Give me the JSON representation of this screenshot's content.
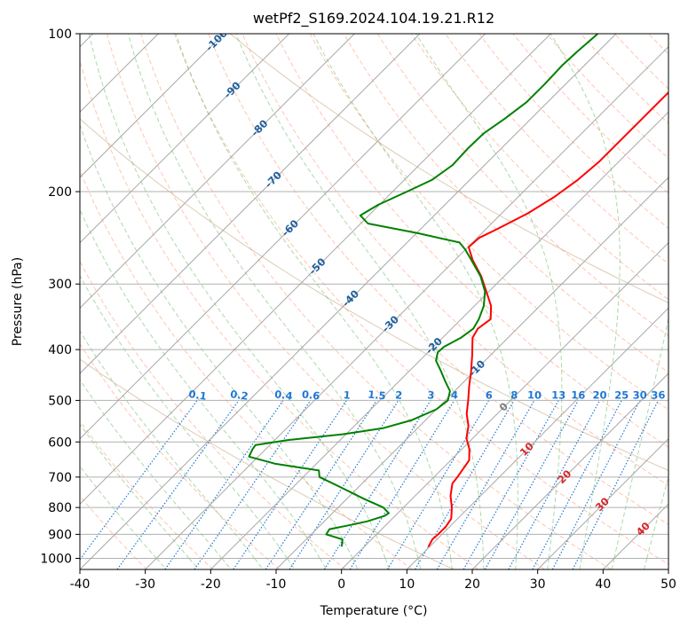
{
  "chart_data": {
    "type": "line",
    "title": "wetPf2_S169.2024.104.19.21.R12",
    "xlabel": "Temperature (°C)",
    "ylabel": "Pressure (hPa)",
    "xlim": [
      -40,
      50
    ],
    "ylim": [
      1050,
      100
    ],
    "y_scale": "log",
    "skew": "skew-T log-p",
    "x_ticks": [
      "-40",
      "-30",
      "-20",
      "-10",
      "0",
      "10",
      "20",
      "30",
      "40",
      "50"
    ],
    "y_ticks": [
      "100",
      "200",
      "300",
      "400",
      "500",
      "600",
      "700",
      "800",
      "900",
      "1000"
    ],
    "grid": true,
    "colors": {
      "temperature": "#ff0000",
      "dewpoint": "#008000",
      "dry_adiabats": "#ff7f50",
      "moist_adiabats": "#2ca02c",
      "mixing_ratio": "#1f77d4",
      "isotherms": "#808080",
      "wet_bulb_zero_label": "#808080",
      "isotherm_labels_cold": "#1f5f9f",
      "isotherm_labels_warm": "#d62728",
      "theta_curves": "#c8a882"
    },
    "isotherm_labels": [
      {
        "text": "-100",
        "t": -100
      },
      {
        "text": "-90",
        "t": -90
      },
      {
        "text": "-80",
        "t": -80
      },
      {
        "text": "-70",
        "t": -70
      },
      {
        "text": "-60",
        "t": -60
      },
      {
        "text": "-50",
        "t": -50
      },
      {
        "text": "-40",
        "t": -40
      },
      {
        "text": "-30",
        "t": -30
      },
      {
        "text": "-20",
        "t": -20
      },
      {
        "text": "-10",
        "t": -10
      },
      {
        "text": "0",
        "t": 0
      },
      {
        "text": "10",
        "t": 10
      },
      {
        "text": "20",
        "t": 20
      },
      {
        "text": "30",
        "t": 30
      },
      {
        "text": "40",
        "t": 40
      }
    ],
    "mixing_ratio_labels": [
      "0.1",
      "0.2",
      "0.4",
      "0.6",
      "1",
      "1.5",
      "2",
      "3",
      "4",
      "6",
      "8",
      "10",
      "13",
      "16",
      "20",
      "25",
      "30",
      "36"
    ],
    "series": [
      {
        "key": "temperature",
        "points": [
          {
            "p": 950,
            "t": 9.8
          },
          {
            "p": 920,
            "t": 9.3
          },
          {
            "p": 900,
            "t": 9.4
          },
          {
            "p": 870,
            "t": 9.4
          },
          {
            "p": 840,
            "t": 9.0
          },
          {
            "p": 800,
            "t": 7.4
          },
          {
            "p": 760,
            "t": 5.4
          },
          {
            "p": 720,
            "t": 3.8
          },
          {
            "p": 700,
            "t": 3.6
          },
          {
            "p": 650,
            "t": 2.8
          },
          {
            "p": 620,
            "t": 1.2
          },
          {
            "p": 590,
            "t": -1.0
          },
          {
            "p": 560,
            "t": -2.5
          },
          {
            "p": 530,
            "t": -4.7
          },
          {
            "p": 500,
            "t": -6.5
          },
          {
            "p": 470,
            "t": -8.5
          },
          {
            "p": 440,
            "t": -10.5
          },
          {
            "p": 410,
            "t": -12.8
          },
          {
            "p": 380,
            "t": -15.4
          },
          {
            "p": 365,
            "t": -16.0
          },
          {
            "p": 350,
            "t": -15.5
          },
          {
            "p": 330,
            "t": -17.5
          },
          {
            "p": 310,
            "t": -20.4
          },
          {
            "p": 290,
            "t": -23.5
          },
          {
            "p": 270,
            "t": -27.3
          },
          {
            "p": 255,
            "t": -29.9
          },
          {
            "p": 245,
            "t": -29.7
          },
          {
            "p": 235,
            "t": -28.2
          },
          {
            "p": 220,
            "t": -26.0
          },
          {
            "p": 205,
            "t": -24.5
          },
          {
            "p": 190,
            "t": -23.5
          },
          {
            "p": 175,
            "t": -23.0
          },
          {
            "p": 160,
            "t": -23.0
          },
          {
            "p": 145,
            "t": -23.0
          },
          {
            "p": 130,
            "t": -23.0
          },
          {
            "p": 118,
            "t": -22.5
          },
          {
            "p": 108,
            "t": -22.0
          },
          {
            "p": 100,
            "t": -22.5
          }
        ]
      },
      {
        "key": "dewpoint",
        "points": [
          {
            "p": 950,
            "t": -3.5
          },
          {
            "p": 935,
            "t": -3.9
          },
          {
            "p": 920,
            "t": -4.5
          },
          {
            "p": 900,
            "t": -7.7
          },
          {
            "p": 880,
            "t": -8.0
          },
          {
            "p": 865,
            "t": -5.6
          },
          {
            "p": 850,
            "t": -3.4
          },
          {
            "p": 830,
            "t": -1.6
          },
          {
            "p": 820,
            "t": -1.4
          },
          {
            "p": 800,
            "t": -3.1
          },
          {
            "p": 770,
            "t": -7.4
          },
          {
            "p": 730,
            "t": -13.0
          },
          {
            "p": 700,
            "t": -17.5
          },
          {
            "p": 680,
            "t": -18.6
          },
          {
            "p": 660,
            "t": -26.4
          },
          {
            "p": 640,
            "t": -31.4
          },
          {
            "p": 620,
            "t": -32.0
          },
          {
            "p": 608,
            "t": -32.2
          },
          {
            "p": 595,
            "t": -28.0
          },
          {
            "p": 580,
            "t": -20.4
          },
          {
            "p": 565,
            "t": -15.3
          },
          {
            "p": 545,
            "t": -12.1
          },
          {
            "p": 520,
            "t": -10.0
          },
          {
            "p": 500,
            "t": -9.6
          },
          {
            "p": 480,
            "t": -10.7
          },
          {
            "p": 460,
            "t": -12.9
          },
          {
            "p": 440,
            "t": -15.1
          },
          {
            "p": 420,
            "t": -17.5
          },
          {
            "p": 405,
            "t": -18.5
          },
          {
            "p": 395,
            "t": -18.4
          },
          {
            "p": 380,
            "t": -17.2
          },
          {
            "p": 365,
            "t": -16.7
          },
          {
            "p": 350,
            "t": -17.3
          },
          {
            "p": 330,
            "t": -18.6
          },
          {
            "p": 310,
            "t": -20.6
          },
          {
            "p": 290,
            "t": -23.6
          },
          {
            "p": 270,
            "t": -27.5
          },
          {
            "p": 258,
            "t": -30.0
          },
          {
            "p": 250,
            "t": -32.0
          },
          {
            "p": 240,
            "t": -39.8
          },
          {
            "p": 230,
            "t": -48.9
          },
          {
            "p": 222,
            "t": -51.3
          },
          {
            "p": 212,
            "t": -50.2
          },
          {
            "p": 200,
            "t": -47.8
          },
          {
            "p": 190,
            "t": -45.8
          },
          {
            "p": 178,
            "t": -44.9
          },
          {
            "p": 165,
            "t": -45.1
          },
          {
            "p": 155,
            "t": -45.0
          },
          {
            "p": 145,
            "t": -44.0
          },
          {
            "p": 135,
            "t": -43.2
          },
          {
            "p": 125,
            "t": -43.2
          },
          {
            "p": 115,
            "t": -43.4
          },
          {
            "p": 108,
            "t": -43.2
          },
          {
            "p": 100,
            "t": -42.8
          }
        ]
      }
    ]
  }
}
